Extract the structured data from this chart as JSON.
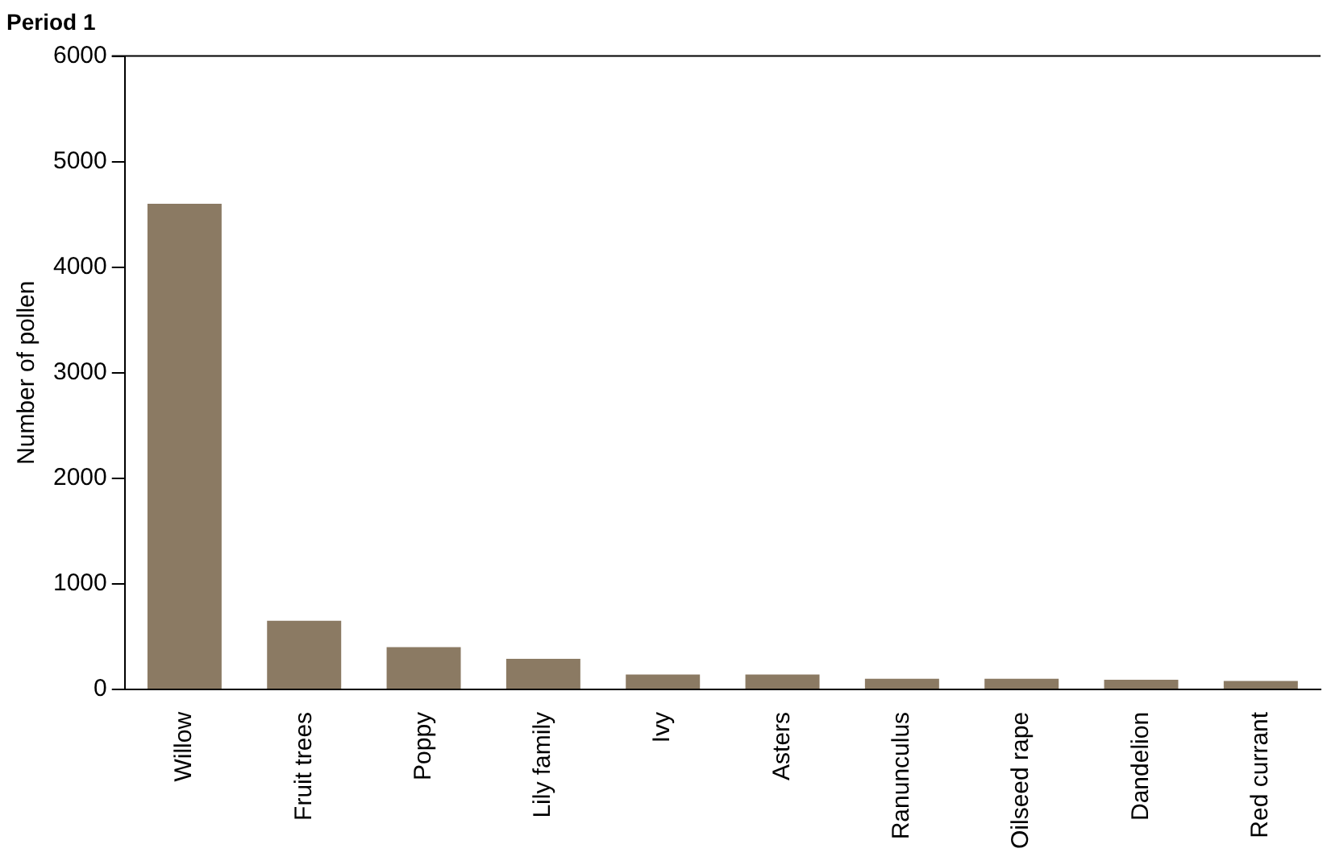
{
  "chart_data": {
    "type": "bar",
    "title": "Period 1",
    "ylabel": "Number of pollen",
    "categories": [
      "Willow",
      "Fruit trees",
      "Poppy",
      "Lily family",
      "Ivy",
      "Asters",
      "Ranunculus",
      "Oilseed rape",
      "Dandelion",
      "Red currant"
    ],
    "values": [
      4600,
      650,
      400,
      290,
      140,
      140,
      100,
      100,
      90,
      80
    ],
    "color": "#8b7a63",
    "ylim": [
      0,
      6000
    ],
    "yticks": [
      0,
      1000,
      2000,
      3000,
      4000,
      5000,
      6000
    ],
    "grid": false,
    "legend": false
  }
}
